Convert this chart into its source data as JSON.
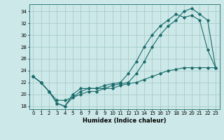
{
  "xlabel": "Humidex (Indice chaleur)",
  "ylabel": "",
  "background_color": "#cce8e8",
  "grid_color": "#aacccc",
  "line_color": "#1a6b6b",
  "xlim": [
    -0.5,
    23.5
  ],
  "ylim": [
    17.5,
    35.2
  ],
  "xticks": [
    0,
    1,
    2,
    3,
    4,
    5,
    6,
    7,
    8,
    9,
    10,
    11,
    12,
    13,
    14,
    15,
    16,
    17,
    18,
    19,
    20,
    21,
    22,
    23
  ],
  "yticks": [
    18,
    20,
    22,
    24,
    26,
    28,
    30,
    32,
    34
  ],
  "line1_x": [
    0,
    1,
    2,
    3,
    4,
    5,
    6,
    7,
    8,
    9,
    10,
    11,
    12,
    13,
    14,
    15,
    16,
    17,
    18,
    19,
    20,
    21,
    22,
    23
  ],
  "line1_y": [
    23,
    22,
    20.5,
    18.5,
    18,
    19.5,
    20.5,
    21,
    21,
    21.5,
    21.8,
    22,
    23.5,
    25.5,
    28,
    30,
    31.5,
    32.5,
    33.5,
    33,
    33.3,
    32.5,
    27.5,
    24.5
  ],
  "line2_x": [
    0,
    1,
    2,
    3,
    4,
    5,
    6,
    7,
    8,
    9,
    10,
    11,
    12,
    13,
    14,
    15,
    16,
    17,
    18,
    19,
    20,
    21,
    22,
    23
  ],
  "line2_y": [
    23,
    22,
    20.5,
    18.5,
    18,
    20,
    21,
    21,
    21,
    21,
    21.5,
    21.8,
    22,
    23.5,
    25.5,
    28,
    30,
    31.5,
    32.5,
    34,
    34.5,
    33.5,
    32.5,
    24.5
  ],
  "line3_x": [
    0,
    1,
    2,
    3,
    4,
    5,
    6,
    7,
    8,
    9,
    10,
    11,
    12,
    13,
    14,
    15,
    16,
    17,
    18,
    19,
    20,
    21,
    22,
    23
  ],
  "line3_y": [
    23,
    22,
    20.5,
    19,
    19,
    19.5,
    20,
    20.5,
    20.5,
    21,
    21,
    21.5,
    21.8,
    22,
    22.5,
    23,
    23.5,
    24,
    24.2,
    24.5,
    24.5,
    24.5,
    24.5,
    24.5
  ]
}
